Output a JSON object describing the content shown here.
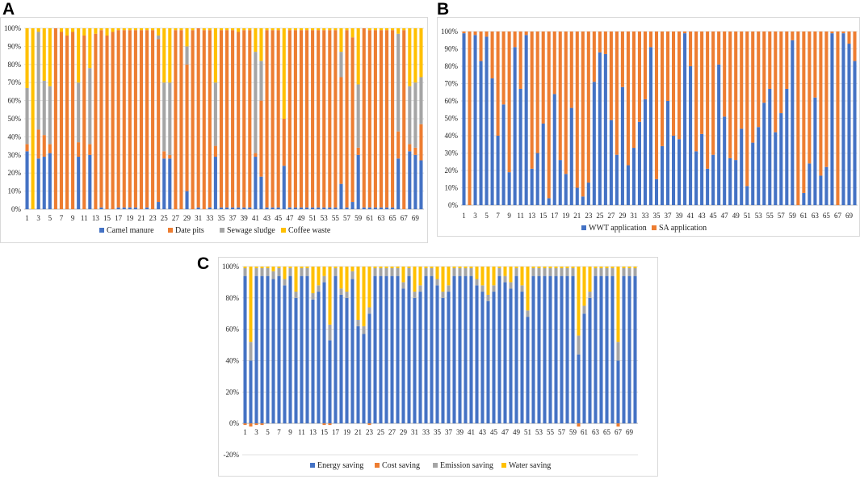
{
  "panels": {
    "a": "A",
    "b": "B",
    "c": "C"
  },
  "colors": {
    "blue": "#4472C4",
    "orange": "#ED7D31",
    "gray": "#A5A5A5",
    "yellow": "#FFC000",
    "grid": "#d9d9d9",
    "axis": "#bfbfbf",
    "frame": "#d9d9d9"
  },
  "chart_data": [
    {
      "id": "A",
      "type": "bar",
      "stacked": "percent",
      "title": "",
      "xlabel": "",
      "ylabel": "",
      "ylim": [
        0,
        100
      ],
      "yticks": [
        0,
        10,
        20,
        30,
        40,
        50,
        60,
        70,
        80,
        90,
        100
      ],
      "x": [
        1,
        2,
        3,
        4,
        5,
        6,
        7,
        8,
        9,
        10,
        11,
        12,
        13,
        14,
        15,
        16,
        17,
        18,
        19,
        20,
        21,
        22,
        23,
        24,
        25,
        26,
        27,
        28,
        29,
        30,
        31,
        32,
        33,
        34,
        35,
        36,
        37,
        38,
        39,
        40,
        41,
        42,
        43,
        44,
        45,
        46,
        47,
        48,
        49,
        50,
        51,
        52,
        53,
        54,
        55,
        56,
        57,
        58,
        59,
        60,
        61,
        62,
        63,
        64,
        65,
        66,
        67,
        68,
        69,
        70
      ],
      "xtick_labels": [
        "1",
        "3",
        "5",
        "7",
        "9",
        "11",
        "13",
        "15",
        "17",
        "19",
        "21",
        "23",
        "25",
        "27",
        "29",
        "31",
        "33",
        "35",
        "37",
        "39",
        "41",
        "43",
        "45",
        "47",
        "49",
        "51",
        "53",
        "55",
        "57",
        "59",
        "61",
        "63",
        "65",
        "67",
        "69"
      ],
      "legend_position": "bottom",
      "series": [
        {
          "name": "Camel manure",
          "color": "#4472C4",
          "values": [
            32,
            0,
            28,
            29,
            31,
            0,
            0,
            0,
            0,
            29,
            0,
            30,
            0,
            1,
            0,
            0,
            1,
            1,
            1,
            1,
            0,
            1,
            0,
            4,
            28,
            28,
            0,
            0,
            10,
            0,
            1,
            0,
            1,
            29,
            1,
            1,
            1,
            1,
            1,
            1,
            29,
            18,
            1,
            1,
            1,
            24,
            1,
            1,
            1,
            1,
            1,
            1,
            1,
            1,
            1,
            14,
            1,
            4,
            30,
            1,
            1,
            1,
            1,
            1,
            1,
            28,
            0,
            32,
            30,
            27
          ]
        },
        {
          "name": "Date pits",
          "color": "#ED7D31",
          "values": [
            4,
            0,
            16,
            12,
            5,
            100,
            98,
            96,
            98,
            8,
            96,
            6,
            97,
            98,
            96,
            98,
            98,
            98,
            98,
            98,
            99,
            98,
            99,
            90,
            4,
            2,
            99,
            99,
            70,
            99,
            99,
            99,
            98,
            6,
            98,
            98,
            98,
            97,
            98,
            98,
            2,
            42,
            98,
            98,
            98,
            26,
            98,
            98,
            98,
            98,
            98,
            98,
            98,
            98,
            98,
            59,
            98,
            91,
            4,
            99,
            98,
            98,
            98,
            98,
            98,
            15,
            99,
            4,
            4,
            20
          ]
        },
        {
          "name": "Sewage sludge",
          "color": "#A5A5A5",
          "values": [
            31,
            0,
            54,
            30,
            32,
            0,
            0,
            0,
            0,
            33,
            0,
            42,
            0,
            0,
            0,
            0,
            0,
            0,
            0,
            0,
            0,
            0,
            0,
            2,
            38,
            40,
            0,
            0,
            10,
            0,
            0,
            0,
            0,
            35,
            0,
            0,
            0,
            0,
            0,
            0,
            56,
            22,
            0,
            0,
            0,
            0,
            0,
            0,
            0,
            0,
            0,
            0,
            0,
            0,
            0,
            14,
            0,
            0,
            35,
            0,
            0,
            0,
            0,
            0,
            0,
            54,
            0,
            32,
            36,
            26
          ]
        },
        {
          "name": "Coffee waste",
          "color": "#FFC000",
          "values": [
            33,
            100,
            2,
            29,
            32,
            0,
            2,
            4,
            2,
            30,
            4,
            22,
            3,
            1,
            4,
            2,
            1,
            1,
            1,
            1,
            1,
            1,
            1,
            4,
            30,
            30,
            1,
            1,
            10,
            1,
            0,
            1,
            1,
            30,
            1,
            1,
            1,
            2,
            1,
            1,
            13,
            18,
            1,
            1,
            1,
            50,
            1,
            1,
            1,
            1,
            1,
            1,
            1,
            1,
            1,
            13,
            1,
            5,
            31,
            0,
            1,
            1,
            1,
            1,
            1,
            3,
            1,
            32,
            30,
            27
          ]
        }
      ]
    },
    {
      "id": "B",
      "type": "bar",
      "stacked": "percent",
      "title": "",
      "xlabel": "",
      "ylabel": "",
      "ylim": [
        0,
        100
      ],
      "yticks": [
        0,
        10,
        20,
        30,
        40,
        50,
        60,
        70,
        80,
        90,
        100
      ],
      "x": [
        1,
        2,
        3,
        4,
        5,
        6,
        7,
        8,
        9,
        10,
        11,
        12,
        13,
        14,
        15,
        16,
        17,
        18,
        19,
        20,
        21,
        22,
        23,
        24,
        25,
        26,
        27,
        28,
        29,
        30,
        31,
        32,
        33,
        34,
        35,
        36,
        37,
        38,
        39,
        40,
        41,
        42,
        43,
        44,
        45,
        46,
        47,
        48,
        49,
        50,
        51,
        52,
        53,
        54,
        55,
        56,
        57,
        58,
        59,
        60,
        61,
        62,
        63,
        64,
        65,
        66,
        67,
        68,
        69,
        70
      ],
      "xtick_labels": [
        "1",
        "3",
        "5",
        "7",
        "9",
        "11",
        "13",
        "15",
        "17",
        "19",
        "21",
        "23",
        "25",
        "27",
        "29",
        "31",
        "33",
        "35",
        "37",
        "39",
        "41",
        "43",
        "45",
        "47",
        "49",
        "51",
        "53",
        "55",
        "57",
        "59",
        "61",
        "63",
        "65",
        "67",
        "69"
      ],
      "legend_position": "bottom",
      "series": [
        {
          "name": "WWT application",
          "color": "#4472C4",
          "values": [
            99,
            0,
            98,
            83,
            97,
            73,
            40,
            58,
            19,
            91,
            67,
            98,
            21,
            30,
            47,
            4,
            64,
            26,
            18,
            56,
            10,
            5,
            13,
            71,
            88,
            87,
            49,
            29,
            68,
            23,
            33,
            48,
            61,
            91,
            15,
            34,
            60,
            40,
            38,
            99,
            80,
            31,
            41,
            21,
            29,
            81,
            51,
            27,
            26,
            44,
            11,
            36,
            45,
            59,
            67,
            42,
            53,
            67,
            95,
            0,
            7,
            24,
            62,
            17,
            22,
            99,
            0,
            99,
            93,
            83
          ]
        },
        {
          "name": "SA application",
          "color": "#ED7D31",
          "values": [
            1,
            100,
            2,
            17,
            3,
            27,
            60,
            42,
            81,
            9,
            33,
            2,
            79,
            70,
            53,
            96,
            36,
            74,
            82,
            44,
            90,
            95,
            87,
            29,
            12,
            13,
            51,
            71,
            32,
            77,
            67,
            52,
            39,
            9,
            85,
            66,
            40,
            60,
            62,
            1,
            20,
            69,
            59,
            79,
            71,
            19,
            49,
            73,
            74,
            56,
            89,
            64,
            55,
            41,
            33,
            58,
            47,
            33,
            5,
            100,
            93,
            76,
            38,
            83,
            78,
            1,
            100,
            1,
            7,
            17
          ]
        }
      ]
    },
    {
      "id": "C",
      "type": "bar",
      "stacked": "percent",
      "title": "",
      "xlabel": "",
      "ylabel": "",
      "ylim": [
        -20,
        100
      ],
      "yticks": [
        -20,
        0,
        20,
        40,
        60,
        80,
        100
      ],
      "x": [
        1,
        2,
        3,
        4,
        5,
        6,
        7,
        8,
        9,
        10,
        11,
        12,
        13,
        14,
        15,
        16,
        17,
        18,
        19,
        20,
        21,
        22,
        23,
        24,
        25,
        26,
        27,
        28,
        29,
        30,
        31,
        32,
        33,
        34,
        35,
        36,
        37,
        38,
        39,
        40,
        41,
        42,
        43,
        44,
        45,
        46,
        47,
        48,
        49,
        50,
        51,
        52,
        53,
        54,
        55,
        56,
        57,
        58,
        59,
        60,
        61,
        62,
        63,
        64,
        65,
        66,
        67,
        68,
        69,
        70
      ],
      "xtick_labels": [
        "1",
        "3",
        "5",
        "7",
        "9",
        "11",
        "13",
        "15",
        "17",
        "19",
        "21",
        "23",
        "25",
        "27",
        "29",
        "31",
        "33",
        "35",
        "37",
        "39",
        "41",
        "43",
        "45",
        "47",
        "49",
        "51",
        "53",
        "55",
        "57",
        "59",
        "61",
        "63",
        "65",
        "67",
        "69"
      ],
      "legend_position": "bottom",
      "series": [
        {
          "name": "Energy saving",
          "color": "#4472C4",
          "values": [
            94,
            40,
            94,
            94,
            94,
            92,
            94,
            88,
            94,
            80,
            94,
            94,
            79,
            84,
            90,
            53,
            94,
            82,
            80,
            92,
            62,
            57,
            70,
            94,
            94,
            94,
            94,
            94,
            86,
            94,
            80,
            84,
            94,
            94,
            88,
            80,
            84,
            94,
            94,
            94,
            94,
            88,
            84,
            78,
            84,
            94,
            90,
            86,
            94,
            84,
            68,
            94,
            94,
            94,
            94,
            94,
            94,
            94,
            94,
            44,
            70,
            80,
            94,
            94,
            94,
            94,
            40,
            94,
            94,
            94
          ]
        },
        {
          "name": "Cost saving",
          "color": "#ED7D31",
          "values": [
            -1,
            -2,
            -1,
            -1,
            0,
            0,
            0,
            0,
            0,
            0,
            0,
            0,
            0,
            0,
            -1,
            -1,
            0,
            0,
            0,
            0,
            0,
            0,
            -1,
            0,
            0,
            0,
            0,
            0,
            0,
            0,
            0,
            0,
            0,
            0,
            0,
            0,
            0,
            0,
            0,
            0,
            0,
            0,
            0,
            0,
            0,
            0,
            0,
            0,
            0,
            0,
            0,
            0,
            0,
            0,
            0,
            0,
            0,
            0,
            0,
            -2,
            0,
            0,
            0,
            0,
            0,
            0,
            -2,
            0,
            0,
            0
          ]
        },
        {
          "name": "Emission saving",
          "color": "#A5A5A5",
          "values": [
            5,
            12,
            5,
            5,
            5,
            5,
            5,
            4,
            5,
            4,
            5,
            5,
            4,
            4,
            4,
            10,
            5,
            4,
            4,
            5,
            4,
            5,
            4,
            5,
            5,
            5,
            5,
            5,
            4,
            5,
            4,
            4,
            5,
            5,
            4,
            4,
            4,
            5,
            5,
            5,
            5,
            4,
            4,
            4,
            4,
            5,
            4,
            4,
            5,
            4,
            4,
            5,
            5,
            5,
            5,
            5,
            5,
            5,
            5,
            12,
            5,
            4,
            5,
            5,
            5,
            5,
            12,
            5,
            5,
            5
          ]
        },
        {
          "name": "Water saving",
          "color": "#FFC000",
          "values": [
            1,
            48,
            1,
            1,
            1,
            3,
            1,
            8,
            1,
            16,
            1,
            1,
            17,
            12,
            6,
            37,
            1,
            14,
            16,
            3,
            34,
            38,
            26,
            1,
            1,
            1,
            1,
            1,
            10,
            1,
            16,
            12,
            1,
            1,
            8,
            16,
            12,
            1,
            1,
            1,
            1,
            8,
            12,
            18,
            12,
            1,
            6,
            10,
            1,
            12,
            28,
            1,
            1,
            1,
            1,
            1,
            1,
            1,
            1,
            44,
            25,
            16,
            1,
            1,
            1,
            1,
            48,
            1,
            1,
            1
          ]
        }
      ]
    }
  ]
}
